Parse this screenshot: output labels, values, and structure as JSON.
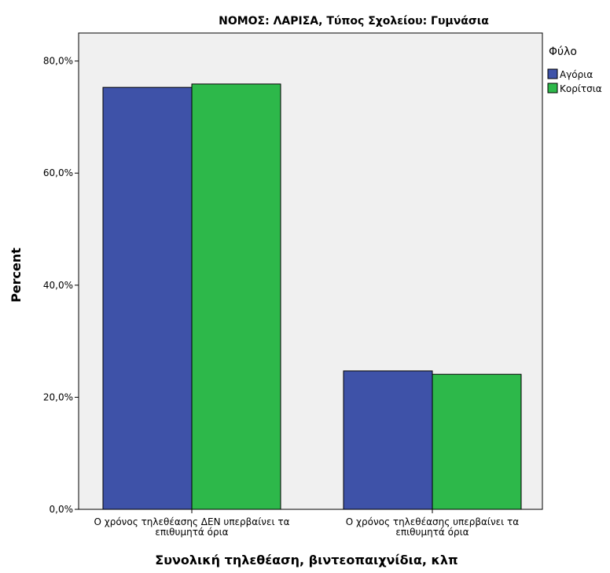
{
  "chart_data": {
    "type": "bar",
    "title": "ΝΟΜΟΣ: ΛΑΡΙΣΑ, Τύπος Σχολείου: Γυμνάσια",
    "xlabel": "Συνολική τηλεθέαση, βιντεοπαιχνίδια, κλπ",
    "ylabel": "Percent",
    "ylim": [
      0,
      85
    ],
    "yticks": [
      0,
      20,
      40,
      60,
      80
    ],
    "ytick_labels": [
      "0,0%",
      "20,0%",
      "40,0%",
      "60,0%",
      "80,0%"
    ],
    "categories": [
      [
        "Ο χρόνος τηλεθέασης ΔΕΝ υπερβαίνει τα",
        "επιθυμητά όρια"
      ],
      [
        "Ο χρόνος τηλεθέασης υπερβαίνει τα",
        "επιθυμητά όρια"
      ]
    ],
    "legend": {
      "title": "Φύλο",
      "position": "right"
    },
    "series": [
      {
        "name": "Αγόρια",
        "color": "#3e52a8",
        "values": [
          75.3,
          24.7
        ]
      },
      {
        "name": "Κορίτσια",
        "color": "#2db84a",
        "values": [
          75.9,
          24.1
        ]
      }
    ],
    "plot_background": "#f0f0f0",
    "grid": false
  }
}
